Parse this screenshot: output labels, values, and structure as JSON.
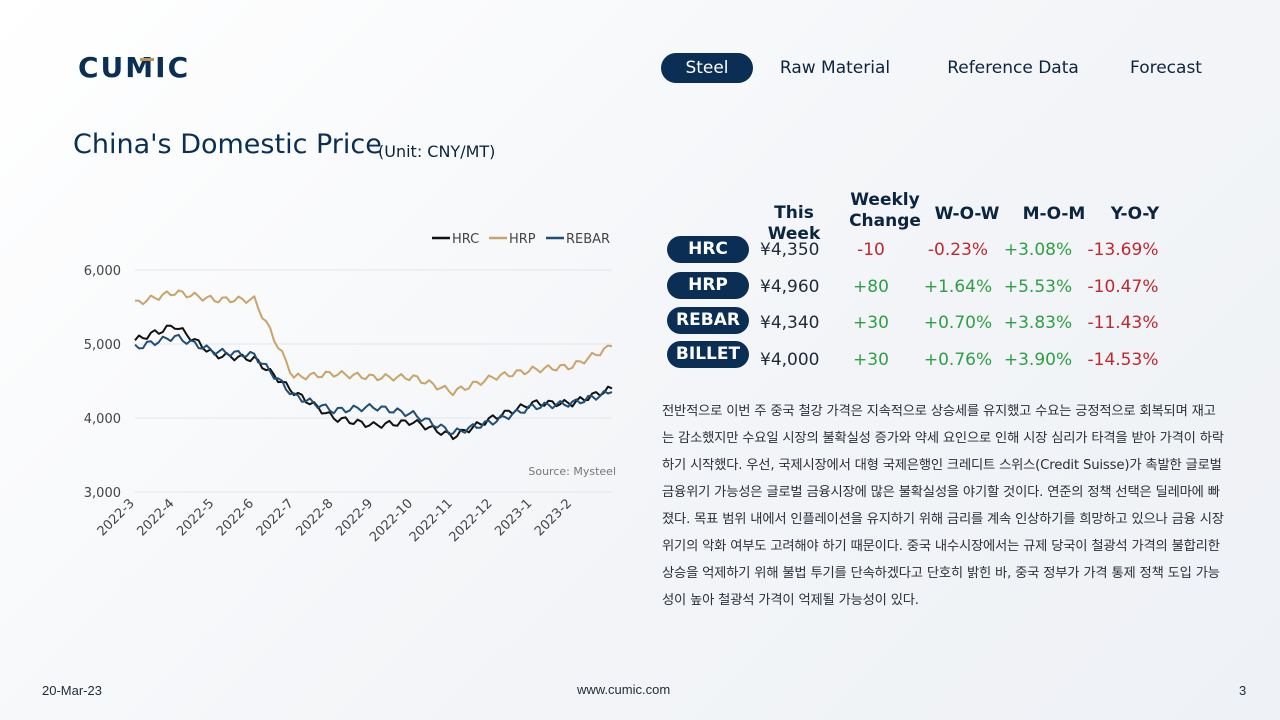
{
  "brand": {
    "logo_text": "CUMIC",
    "colors": {
      "navy": "#0b2e55",
      "gold": "#b9975b"
    }
  },
  "nav": {
    "items": [
      {
        "label": "Steel",
        "active": true
      },
      {
        "label": "Raw Material",
        "active": false
      },
      {
        "label": "Reference Data",
        "active": false
      },
      {
        "label": "Forecast",
        "active": false
      }
    ]
  },
  "header": {
    "title": "China's Domestic Price",
    "unit": "(Unit: CNY/MT)"
  },
  "table": {
    "columns": [
      "This Week",
      "Weekly Change",
      "W-O-W",
      "M-O-M",
      "Y-O-Y"
    ],
    "weekly_change_line1": "Weekly",
    "weekly_change_line2": "Change",
    "rows": [
      {
        "product": "HRC",
        "price": "¥4,350",
        "weekly_change": "-10",
        "wow": "-0.23%",
        "mom": "+3.08%",
        "yoy": "-13.69%"
      },
      {
        "product": "HRP",
        "price": "¥4,960",
        "weekly_change": "+80",
        "wow": "+1.64%",
        "mom": "+5.53%",
        "yoy": "-10.47%"
      },
      {
        "product": "REBAR",
        "price": "¥4,340",
        "weekly_change": "+30",
        "wow": "+0.70%",
        "mom": "+3.83%",
        "yoy": "-11.43%"
      },
      {
        "product": "BILLET",
        "price": "¥4,000",
        "weekly_change": "+30",
        "wow": "+0.76%",
        "mom": "+3.90%",
        "yoy": "-14.53%"
      }
    ]
  },
  "commentary": "  전반적으로 이번 주 중국 철강 가격은 지속적으로 상승세를 유지했고 수요는 긍정적으로 회복되며 재고는 감소했지만 수요일 시장의 불확실성 증가와 약세 요인으로 인해 시장 심리가 타격을 받아 가격이 하락하기 시작했다.  우선, 국제시장에서 대형 국제은행인 크레디트 스위스(Credit Suisse)가 촉발한 글로벌 금융위기 가능성은 글로벌 금융시장에 많은 불확실성을 야기할 것이다. 연준의 정책 선택은 딜레마에 빠졌다. 목표 범위 내에서 인플레이션을 유지하기 위해 금리를 계속 인상하기를 희망하고 있으나 금융 시장 위기의 악화 여부도 고려해야 하기 때문이다. 중국 내수시장에서는 규제 당국이 철광석 가격의 불합리한 상승을 억제하기 위해 불법 투기를 단속하겠다고 단호히 밝힌 바, 중국 정부가 가격 통제 정책 도입 가능성이 높아 철광석 가격이 억제될 가능성이 있다.",
  "chart_data": {
    "type": "line",
    "title": "",
    "xlabel": "",
    "ylabel": "",
    "ylim": [
      3000,
      6000
    ],
    "yticks": [
      "3,000",
      "4,000",
      "5,000",
      "6,000"
    ],
    "x": [
      "2022-3",
      "2022-4",
      "2022-5",
      "2022-6",
      "2022-7",
      "2022-8",
      "2022-9",
      "2022-10",
      "2022-11",
      "2022-12",
      "2023-1",
      "2023-2",
      "2023-3"
    ],
    "xticks": [
      "2022-3",
      "2022-4",
      "2022-5",
      "2022-6",
      "2022-7",
      "2022-8",
      "2022-9",
      "2022-10",
      "2022-11",
      "2022-12",
      "2023-1",
      "2023-2"
    ],
    "legend_position": "top-right",
    "source": "Source: Mysteel",
    "series": [
      {
        "name": "HRC",
        "color": "#111111",
        "values": [
          5050,
          5250,
          4850,
          4800,
          4350,
          4000,
          3900,
          3950,
          3750,
          4000,
          4200,
          4200,
          4400
        ]
      },
      {
        "name": "HRP",
        "color": "#c9a46a",
        "values": [
          5550,
          5700,
          5600,
          5600,
          4550,
          4600,
          4550,
          4550,
          4350,
          4550,
          4650,
          4700,
          4970
        ]
      },
      {
        "name": "REBAR",
        "color": "#1f4e79",
        "values": [
          4950,
          5100,
          4900,
          4850,
          4300,
          4100,
          4150,
          4050,
          3800,
          3950,
          4150,
          4200,
          4350
        ]
      }
    ]
  },
  "footer": {
    "date": "20-Mar-23",
    "website": "www.cumic.com",
    "page": "3"
  }
}
